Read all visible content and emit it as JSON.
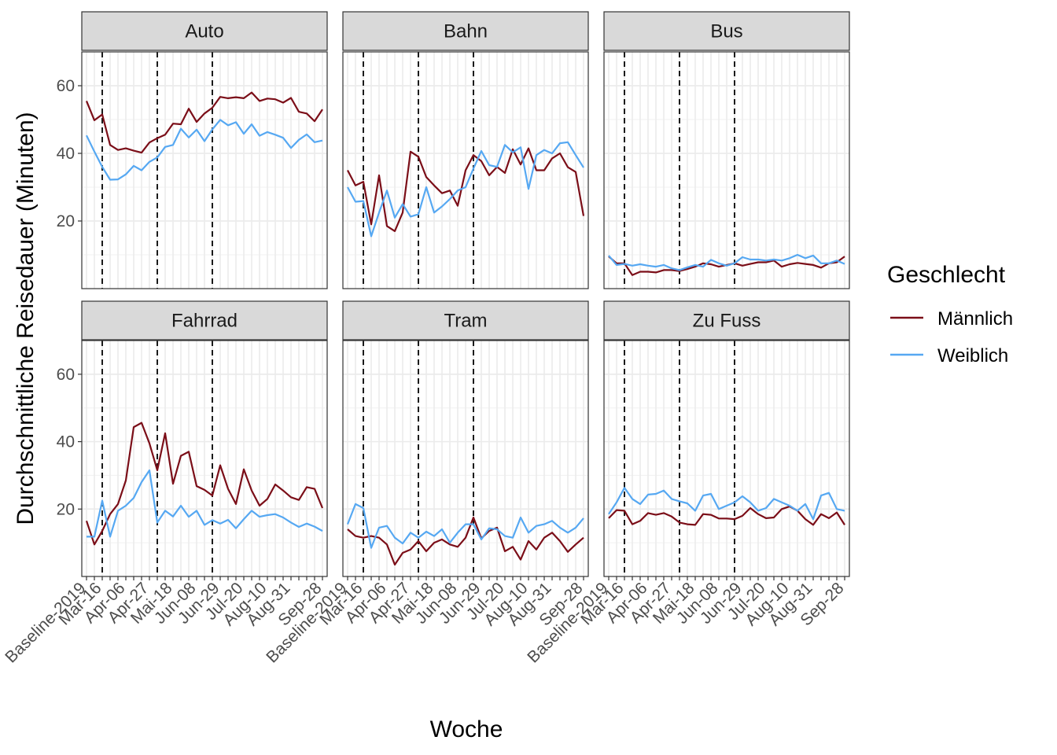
{
  "chart_data": {
    "type": "line",
    "xlabel": "Woche",
    "ylabel": "Durchschnittliche Reisedauer (Minuten)",
    "ylim": [
      0,
      70
    ],
    "y_ticks": [
      20,
      40,
      60
    ],
    "grid": true,
    "x": [
      "Baseline-2019",
      "Mar-09",
      "Mar-16",
      "Mar-23",
      "Mar-30",
      "Apr-06",
      "Apr-13",
      "Apr-20",
      "Apr-27",
      "Mai-04",
      "Mai-11",
      "Mai-18",
      "Mai-25",
      "Jun-01",
      "Jun-08",
      "Jun-15",
      "Jun-22",
      "Jun-29",
      "Jul-06",
      "Jul-13",
      "Jul-20",
      "Jul-27",
      "Aug-03",
      "Aug-10",
      "Aug-17",
      "Aug-24",
      "Aug-31",
      "Sep-07",
      "Sep-14",
      "Sep-21",
      "Sep-28"
    ],
    "x_tick_labels_shown": [
      "Baseline-2019",
      "Mar-16",
      "Apr-06",
      "Apr-27",
      "Mai-18",
      "Jun-08",
      "Jun-29",
      "Jul-20",
      "Aug-10",
      "Aug-31",
      "Sep-28"
    ],
    "vertical_reference_lines": [
      "Mar-16",
      "Mai-04",
      "Jun-22"
    ],
    "legend": {
      "title": "Geschlecht",
      "position": "right",
      "entries": [
        {
          "name": "Männlich",
          "color": "#7b0e18"
        },
        {
          "name": "Weiblich",
          "color": "#56a8f2"
        }
      ]
    },
    "panels": [
      {
        "title": "Auto",
        "series": [
          {
            "name": "Männlich",
            "values": [
              55.5,
              49.8,
              51.5,
              42.5,
              41.0,
              41.5,
              40.8,
              40.2,
              43.2,
              44.5,
              45.5,
              48.8,
              48.6,
              53.2,
              49.3,
              51.8,
              53.5,
              56.7,
              56.3,
              56.6,
              56.3,
              58.0,
              55.5,
              56.2,
              56.0,
              55.0,
              56.4,
              52.3,
              51.8,
              49.5,
              53.0
            ]
          },
          {
            "name": "Weiblich",
            "values": [
              45.3,
              40.5,
              36.0,
              32.2,
              32.3,
              33.8,
              36.3,
              35.0,
              37.5,
              38.8,
              41.9,
              42.5,
              47.3,
              44.7,
              47.0,
              43.6,
              47.1,
              49.9,
              48.3,
              49.2,
              45.8,
              48.6,
              45.2,
              46.3,
              45.5,
              44.6,
              41.6,
              44.0,
              45.6,
              43.3,
              43.8
            ]
          }
        ]
      },
      {
        "title": "Bahn",
        "series": [
          {
            "name": "Männlich",
            "values": [
              35.0,
              30.5,
              31.6,
              19.0,
              33.5,
              18.5,
              17.0,
              22.5,
              40.5,
              39.0,
              33.0,
              30.5,
              28.2,
              29.0,
              24.5,
              35.0,
              39.5,
              37.7,
              33.5,
              36.0,
              34.2,
              41.2,
              36.7,
              41.5,
              35.0,
              35.0,
              38.5,
              40.0,
              35.9,
              34.5,
              21.5
            ]
          },
          {
            "name": "Weiblich",
            "values": [
              30.0,
              25.7,
              25.9,
              15.5,
              22.5,
              29.0,
              21.0,
              25.0,
              21.3,
              22.0,
              30.0,
              22.5,
              24.3,
              26.5,
              29.0,
              30.0,
              35.5,
              40.7,
              36.5,
              36.0,
              42.5,
              40.3,
              41.8,
              29.5,
              39.5,
              41.0,
              40.0,
              43.0,
              43.3,
              39.5,
              35.8
            ]
          }
        ]
      },
      {
        "title": "Bus",
        "series": [
          {
            "name": "Männlich",
            "values": [
              9.5,
              7.5,
              7.5,
              4.0,
              5.0,
              5.0,
              4.8,
              5.5,
              5.5,
              5.2,
              5.8,
              6.5,
              7.5,
              7.2,
              6.5,
              7.0,
              7.5,
              6.8,
              7.3,
              7.8,
              7.8,
              8.3,
              6.5,
              7.2,
              7.6,
              7.3,
              7.0,
              6.2,
              7.5,
              7.8,
              9.5
            ]
          },
          {
            "name": "Weiblich",
            "values": [
              9.8,
              7.0,
              7.3,
              6.8,
              7.2,
              6.8,
              6.5,
              7.0,
              6.0,
              5.5,
              6.3,
              7.0,
              6.5,
              8.5,
              7.5,
              6.8,
              7.5,
              9.3,
              8.6,
              8.6,
              8.3,
              8.6,
              8.3,
              9.0,
              10.0,
              9.0,
              9.8,
              7.5,
              7.5,
              8.3,
              7.3
            ]
          }
        ]
      },
      {
        "title": "Fahrrad",
        "series": [
          {
            "name": "Männlich",
            "values": [
              16.5,
              9.5,
              13.5,
              18.5,
              21.5,
              28.5,
              44.3,
              45.6,
              39.5,
              31.5,
              42.5,
              27.5,
              35.8,
              37.0,
              26.8,
              25.7,
              24.0,
              33.0,
              26.0,
              21.5,
              31.8,
              25.5,
              21.0,
              23.0,
              27.3,
              25.5,
              23.5,
              22.7,
              26.5,
              26.0,
              20.3
            ]
          },
          {
            "name": "Weiblich",
            "values": [
              11.8,
              11.8,
              22.5,
              11.8,
              19.5,
              21.0,
              23.3,
              28.0,
              31.5,
              16.0,
              19.5,
              17.8,
              21.0,
              17.7,
              19.5,
              15.3,
              16.7,
              15.7,
              16.8,
              14.3,
              17.0,
              19.5,
              17.7,
              18.2,
              18.5,
              17.5,
              16.0,
              14.7,
              15.7,
              14.8,
              13.5
            ]
          }
        ]
      },
      {
        "title": "Tram",
        "series": [
          {
            "name": "Männlich",
            "values": [
              14.0,
              12.0,
              11.5,
              12.0,
              11.5,
              9.5,
              3.5,
              7.0,
              8.0,
              10.5,
              7.5,
              10.0,
              11.0,
              9.5,
              8.8,
              11.5,
              17.5,
              11.3,
              13.5,
              14.5,
              7.5,
              8.8,
              5.0,
              10.5,
              8.0,
              11.5,
              13.0,
              10.5,
              7.3,
              9.5,
              11.5
            ]
          },
          {
            "name": "Weiblich",
            "values": [
              15.5,
              21.5,
              20.3,
              8.5,
              14.5,
              15.0,
              11.5,
              9.8,
              13.0,
              11.5,
              13.3,
              12.0,
              14.0,
              10.0,
              13.0,
              15.5,
              15.5,
              11.0,
              14.3,
              14.0,
              12.0,
              11.5,
              17.5,
              13.0,
              15.0,
              15.5,
              16.5,
              14.5,
              13.0,
              14.5,
              17.3
            ]
          }
        ]
      },
      {
        "title": "Zu Fuss",
        "series": [
          {
            "name": "Männlich",
            "values": [
              17.3,
              19.7,
              19.5,
              15.5,
              16.5,
              18.8,
              18.3,
              18.8,
              17.8,
              16.0,
              15.5,
              15.3,
              18.5,
              18.3,
              17.2,
              17.2,
              17.0,
              18.0,
              20.3,
              18.5,
              17.3,
              17.5,
              20.0,
              20.8,
              19.5,
              17.0,
              15.3,
              18.5,
              17.3,
              19.0,
              15.3
            ]
          },
          {
            "name": "Weiblich",
            "values": [
              18.5,
              22.0,
              26.3,
              23.0,
              21.5,
              24.3,
              24.5,
              25.5,
              23.0,
              22.3,
              21.7,
              19.5,
              24.0,
              24.5,
              20.0,
              21.0,
              22.0,
              23.8,
              22.0,
              19.5,
              20.3,
              23.0,
              22.0,
              21.0,
              19.5,
              21.5,
              17.0,
              24.0,
              24.8,
              20.0,
              19.5
            ]
          }
        ]
      }
    ]
  }
}
